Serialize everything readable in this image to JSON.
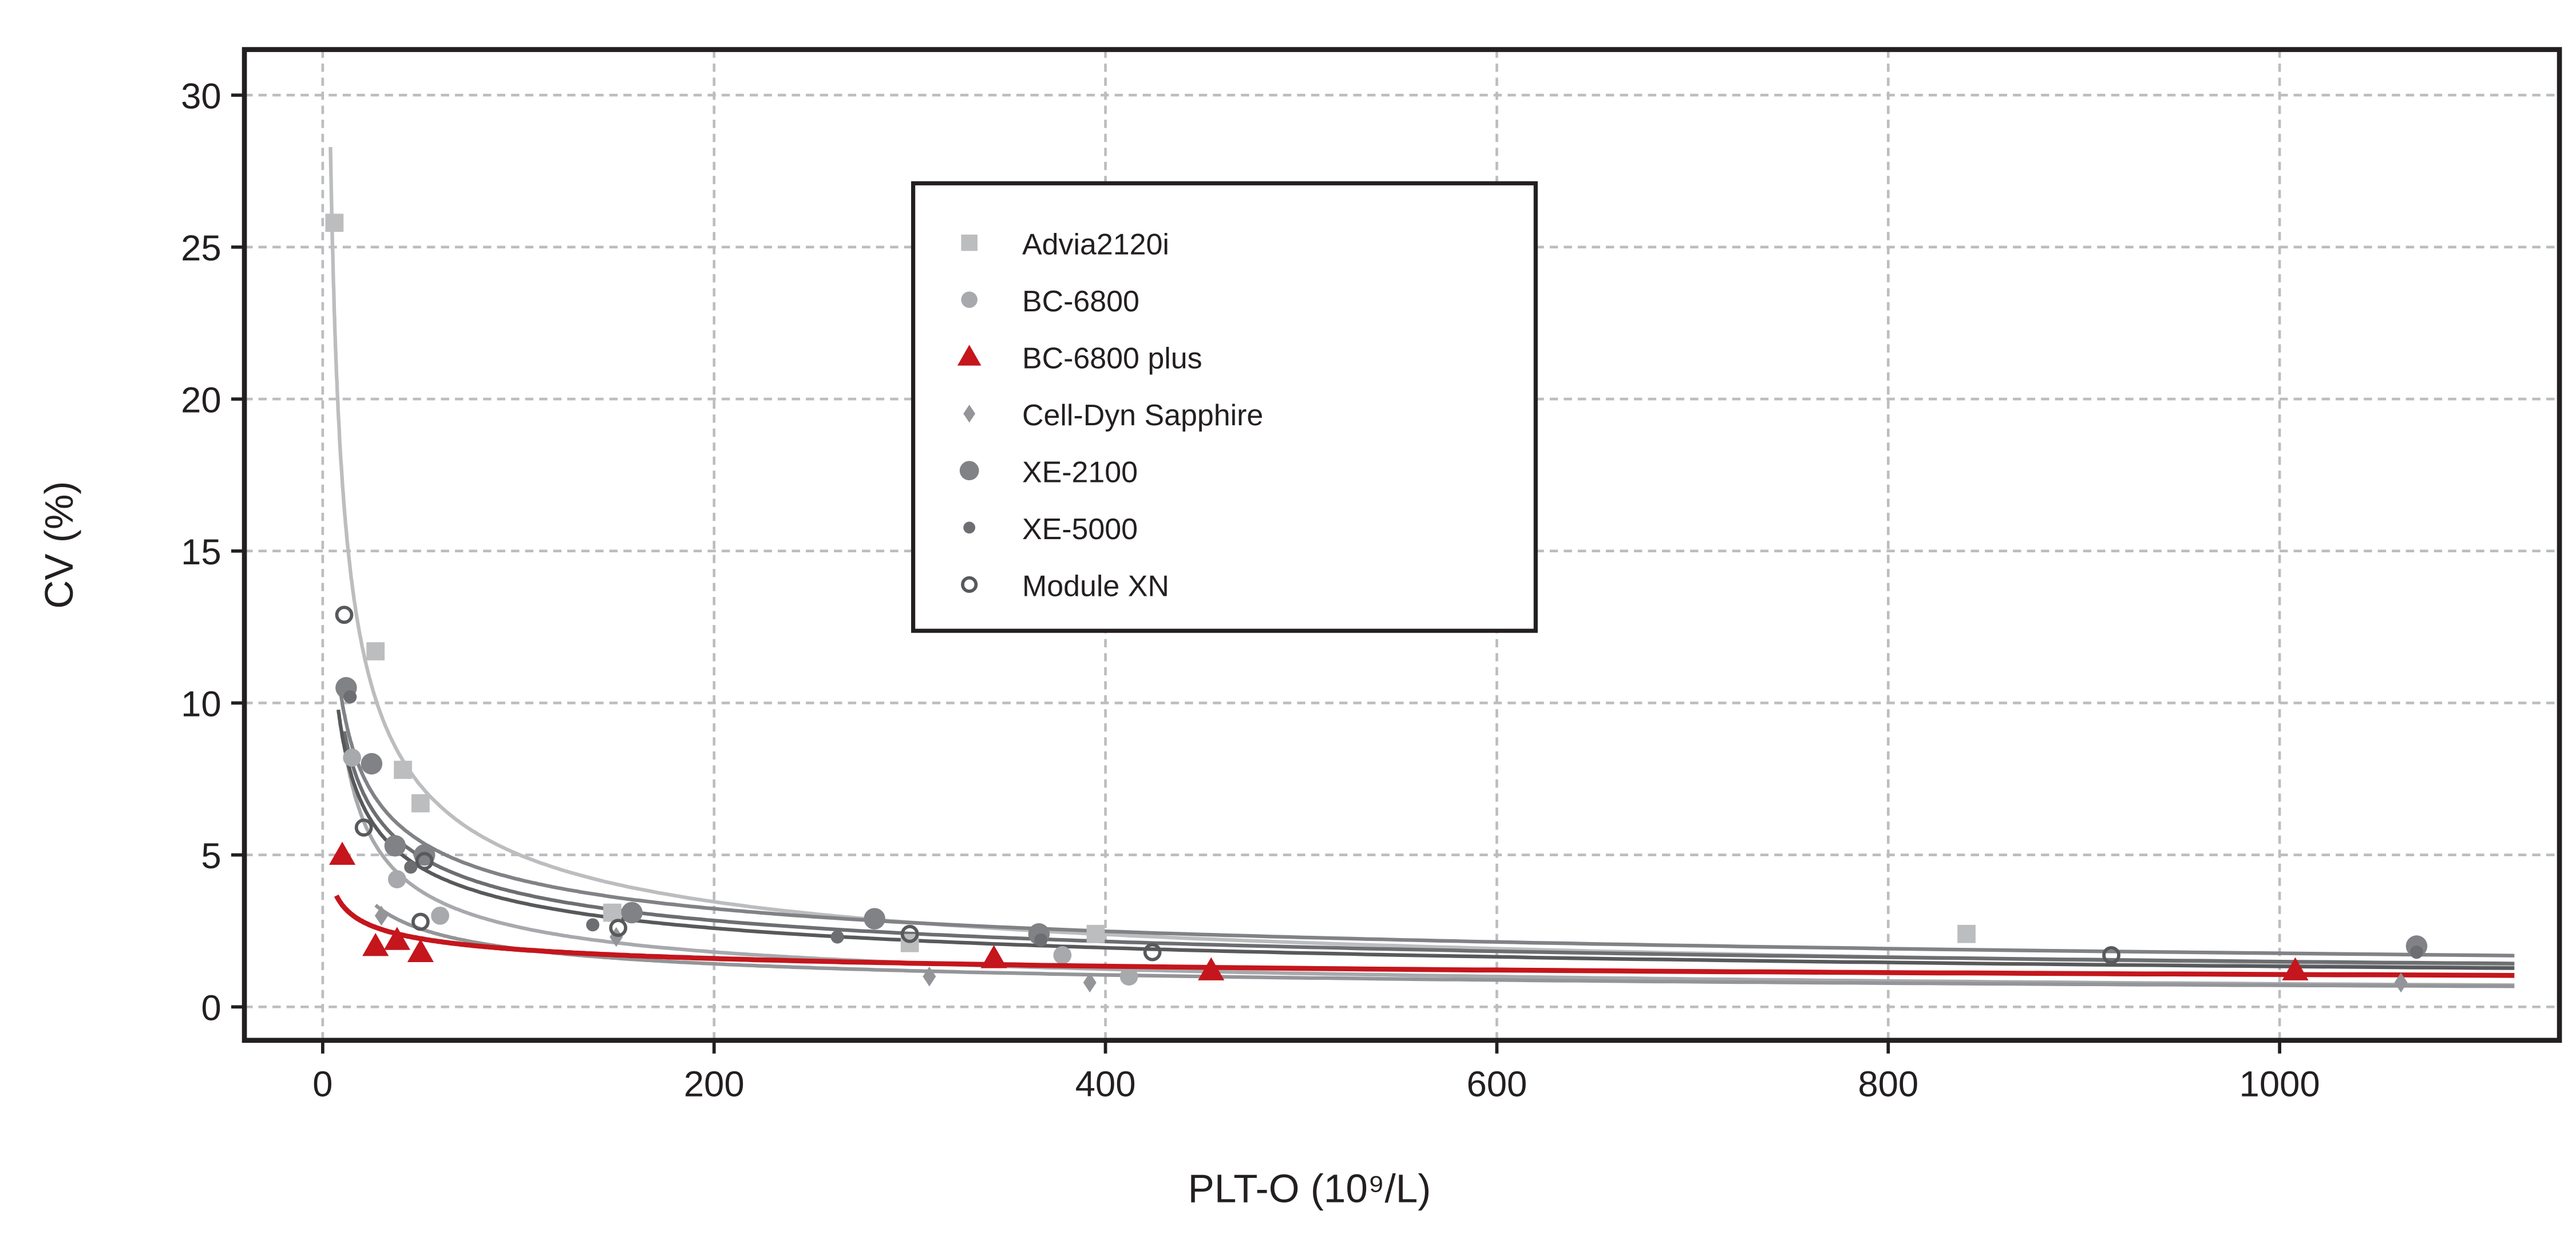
{
  "chart_data": {
    "type": "scatter",
    "xlabel": "PLT-O (10⁹/L)",
    "ylabel": "CV (%)",
    "xlim": [
      -40,
      1143
    ],
    "ylim": [
      -1.1,
      31.5
    ],
    "xticks": [
      0,
      200,
      400,
      600,
      800,
      1000
    ],
    "yticks": [
      0,
      5,
      10,
      15,
      20,
      25,
      30
    ],
    "grid": true,
    "legend_position": "top-center",
    "fit_curves": "power-law trend line per series",
    "series": [
      {
        "name": "Advia2120i",
        "marker": "square",
        "color": "#bcbdbf",
        "points": [
          [
            6,
            25.8
          ],
          [
            27,
            11.7
          ],
          [
            41,
            7.8
          ],
          [
            50,
            6.7
          ],
          [
            148,
            3.1
          ],
          [
            300,
            2.1
          ],
          [
            395,
            2.4
          ],
          [
            840,
            2.4
          ]
        ]
      },
      {
        "name": "BC-6800",
        "marker": "circle",
        "color": "#a7a9ac",
        "points": [
          [
            15,
            8.2
          ],
          [
            38,
            4.2
          ],
          [
            60,
            3.0
          ],
          [
            378,
            1.7
          ],
          [
            412,
            1.0
          ]
        ]
      },
      {
        "name": "BC-6800 plus",
        "marker": "triangle",
        "color": "#c4161c",
        "points": [
          [
            10,
            5.0
          ],
          [
            27,
            2.0
          ],
          [
            38,
            2.2
          ],
          [
            50,
            1.8
          ],
          [
            343,
            1.6
          ],
          [
            454,
            1.2
          ],
          [
            1008,
            1.2
          ]
        ]
      },
      {
        "name": "Cell-Dyn Sapphire",
        "marker": "diamond",
        "color": "#939598",
        "points": [
          [
            30,
            3.0
          ],
          [
            150,
            2.3
          ],
          [
            310,
            1.0
          ],
          [
            392,
            0.8
          ],
          [
            1062,
            0.8
          ]
        ]
      },
      {
        "name": "XE-2100",
        "marker": "circle-large",
        "color": "#808285",
        "points": [
          [
            12,
            10.5
          ],
          [
            25,
            8.0
          ],
          [
            37,
            5.3
          ],
          [
            52,
            5.0
          ],
          [
            158,
            3.1
          ],
          [
            282,
            2.9
          ],
          [
            366,
            2.4
          ],
          [
            1070,
            2.0
          ]
        ]
      },
      {
        "name": "XE-5000",
        "marker": "circle-small",
        "color": "#6d6e71",
        "points": [
          [
            14,
            10.2
          ],
          [
            45,
            4.6
          ],
          [
            138,
            2.7
          ],
          [
            263,
            2.3
          ],
          [
            367,
            2.2
          ],
          [
            1070,
            1.8
          ]
        ]
      },
      {
        "name": "Module XN",
        "marker": "open-circle",
        "color": "#58595b",
        "points": [
          [
            11,
            12.9
          ],
          [
            21,
            5.9
          ],
          [
            50,
            2.8
          ],
          [
            52,
            4.8
          ],
          [
            151,
            2.6
          ],
          [
            300,
            2.4
          ],
          [
            424,
            1.8
          ],
          [
            914,
            1.7
          ]
        ]
      }
    ]
  }
}
